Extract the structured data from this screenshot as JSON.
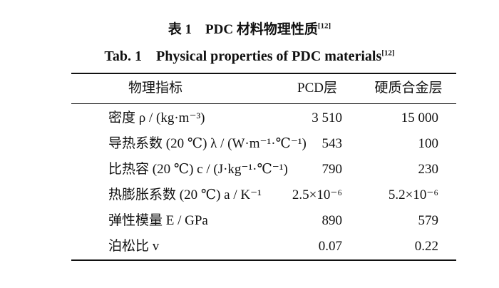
{
  "caption_zh": {
    "text": "表 1　PDC 材料物理性质",
    "ref": "[12]"
  },
  "caption_en": {
    "text": "Tab. 1　Physical properties of PDC materials",
    "ref": "[12]"
  },
  "table": {
    "header": [
      "物理指标",
      "PCD层",
      "硬质合金层"
    ],
    "rows": [
      [
        "密度 ρ / (kg·m⁻³)",
        "3 510",
        "15 000"
      ],
      [
        "导热系数 (20 ℃) λ / (W·m⁻¹·℃⁻¹)",
        "543",
        "100"
      ],
      [
        "比热容 (20 ℃) c / (J·kg⁻¹·℃⁻¹)",
        "790",
        "230"
      ],
      [
        "热膨胀系数 (20 ℃) a / K⁻¹",
        "2.5×10⁻⁶",
        "5.2×10⁻⁶"
      ],
      [
        "弹性模量 E / GPa",
        "890",
        "579"
      ],
      [
        "泊松比 v",
        "0.07",
        "0.22"
      ]
    ]
  }
}
